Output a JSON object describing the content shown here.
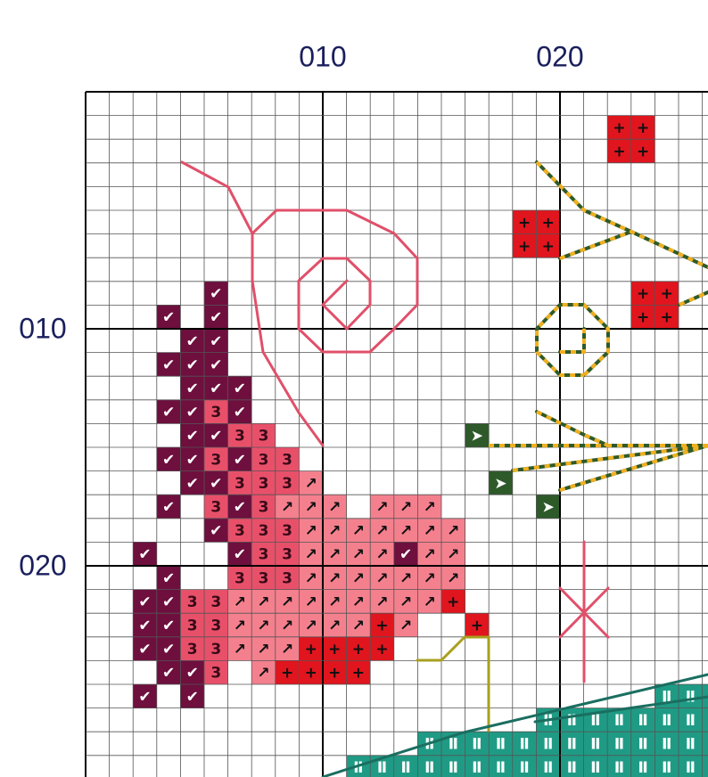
{
  "column_labels": [
    "010",
    "020"
  ],
  "row_labels": [
    "010",
    "020"
  ],
  "symbols": [
    {
      "symbol": "✔",
      "fill": "#6e0f3e",
      "ink": "#ffffff"
    },
    {
      "symbol": "3",
      "fill": "#e8506a",
      "ink": "#3a0a18"
    },
    {
      "symbol": "↗",
      "fill": "#f4808e",
      "ink": "#111111"
    },
    {
      "symbol": "+",
      "fill": "#e0151e",
      "ink": "#111111"
    },
    {
      "symbol": "➤",
      "fill": "#2e5a2a",
      "ink": "#ffffff"
    },
    {
      "symbol": "Ⅱ",
      "fill": "#1f9b85",
      "ink": "#ffffff"
    }
  ],
  "pattern": {
    "rows": [
      "                           ",
      "                      ++   ",
      "                      ++   ",
      "                           ",
      "                           ",
      "                  ++       ",
      "                  ++       ",
      "                           ",
      "     ✔                 ++  ",
      "   ✔ ✔                 ++  ",
      "    ✔✔                     ",
      "   ✔✔✔                     ",
      "    ✔✔✔                    ",
      "   ✔✔3✔                    ",
      "    ✔✔33        ➤          ",
      "   ✔✔3✔33                  ",
      "    ✔✔333↗       ➤         ",
      "   ✔ 3✔3↗↗↗ ↗↗↗    ➤       ",
      "     ✔333↗↗↗↗↗↗↗           ",
      "  ✔   ✔33↗↗↗↗✔↗↗           ",
      "   ✔  333↗↗↗↗↗↗↗           ",
      "  ✔✔33↗↗↗↗↗↗↗↗↗+           ",
      "  ✔✔33↗↗↗↗↗↗+↗  +          ",
      "  ✔✔33↗↗↗++++              ",
      "   ✔✔3 ↗++++               ",
      "  ✔ ✔                   ⅡⅡⅡ",
      "                   ⅡⅡⅡⅡⅡⅡⅡⅡ",
      "              ⅡⅡⅡⅡⅡⅡⅡⅡⅡⅡⅡⅡⅡ",
      "           ⅡⅡⅡⅡⅡⅡⅡⅡⅡⅡⅡⅡⅡⅡⅡⅡ"
    ]
  }
}
